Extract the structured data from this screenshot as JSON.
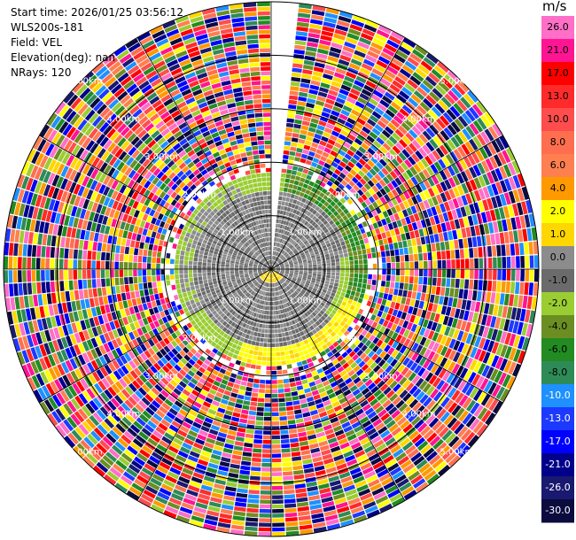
{
  "header": {
    "start_time": "Start time: 2026/01/25 03:56:12",
    "station": "WLS200s-181",
    "field": "Field: VEL",
    "elevation": "Elevation(deg): nan",
    "nrays": "NRays: 120"
  },
  "chart_data": {
    "type": "heatmap",
    "projection": "polar-ppi",
    "field": "VEL",
    "unit": "m/s",
    "n_rays": 120,
    "max_range_km": 5.0,
    "range_ring_labels": [
      "1.00km",
      "2.00km",
      "3.00km",
      "4.00km",
      "5.00km"
    ],
    "colorbar": {
      "unit": "m/s",
      "ticks": [
        "26.0",
        "21.0",
        "17.0",
        "13.0",
        "10.0",
        "8.0",
        "6.0",
        "4.0",
        "2.0",
        "1.0",
        "0.0",
        "-1.0",
        "-2.0",
        "-4.0",
        "-6.0",
        "-8.0",
        "-10.0",
        "-13.0",
        "-17.0",
        "-21.0",
        "-26.0",
        "-30.0"
      ],
      "colors": [
        "#ff6ec7",
        "#ff1493",
        "#ff0000",
        "#ff2a2a",
        "#ff4d4d",
        "#ff6f4f",
        "#ff7f50",
        "#ff9900",
        "#ffff00",
        "#ffd700",
        "#8c8c8c",
        "#6b6b6b",
        "#9acd32",
        "#6b8e23",
        "#228b22",
        "#2e8b57",
        "#1e90ff",
        "#1c39ff",
        "#0000ff",
        "#00008b",
        "#191970",
        "#0b0b40"
      ]
    },
    "inner_regions": [
      {
        "description": "near range",
        "value_range": [
          -1.0,
          0.0
        ]
      },
      {
        "description": "south-west arc",
        "value_range": [
          2.0,
          4.0
        ]
      },
      {
        "description": "north ring",
        "value_range": [
          -2.0,
          -6.0
        ]
      }
    ],
    "blocked_sector_deg": [
      0,
      6
    ]
  }
}
